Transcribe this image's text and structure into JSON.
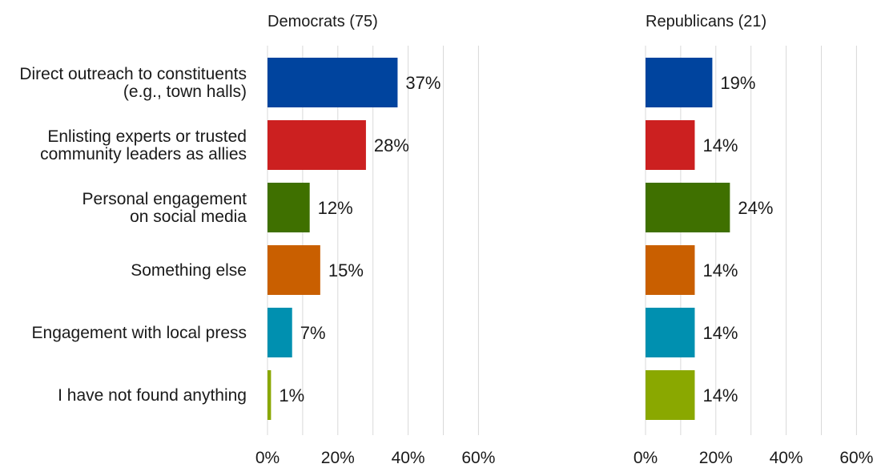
{
  "chart_data": {
    "type": "bar",
    "orientation": "horizontal",
    "categories": [
      [
        "Direct outreach to constituents",
        "(e.g., town halls)"
      ],
      [
        "Enlisting experts or trusted",
        "community leaders as allies"
      ],
      [
        "Personal engagement",
        "on social media"
      ],
      [
        "Something else"
      ],
      [
        "Engagement with local press"
      ],
      [
        "I have not found anything"
      ]
    ],
    "colors": [
      "#00449e",
      "#cc2020",
      "#3f7000",
      "#c95f00",
      "#0090b0",
      "#8aa800"
    ],
    "xlim": [
      0,
      60
    ],
    "xticks": [
      0,
      20,
      40,
      60
    ],
    "tick_suffix": "%",
    "grid": true,
    "panels": [
      {
        "title": "Democrats  (75)",
        "values": [
          37,
          28,
          12,
          15,
          7,
          1
        ]
      },
      {
        "title": "Republicans (21)",
        "values": [
          19,
          14,
          24,
          14,
          14,
          14
        ]
      }
    ]
  }
}
